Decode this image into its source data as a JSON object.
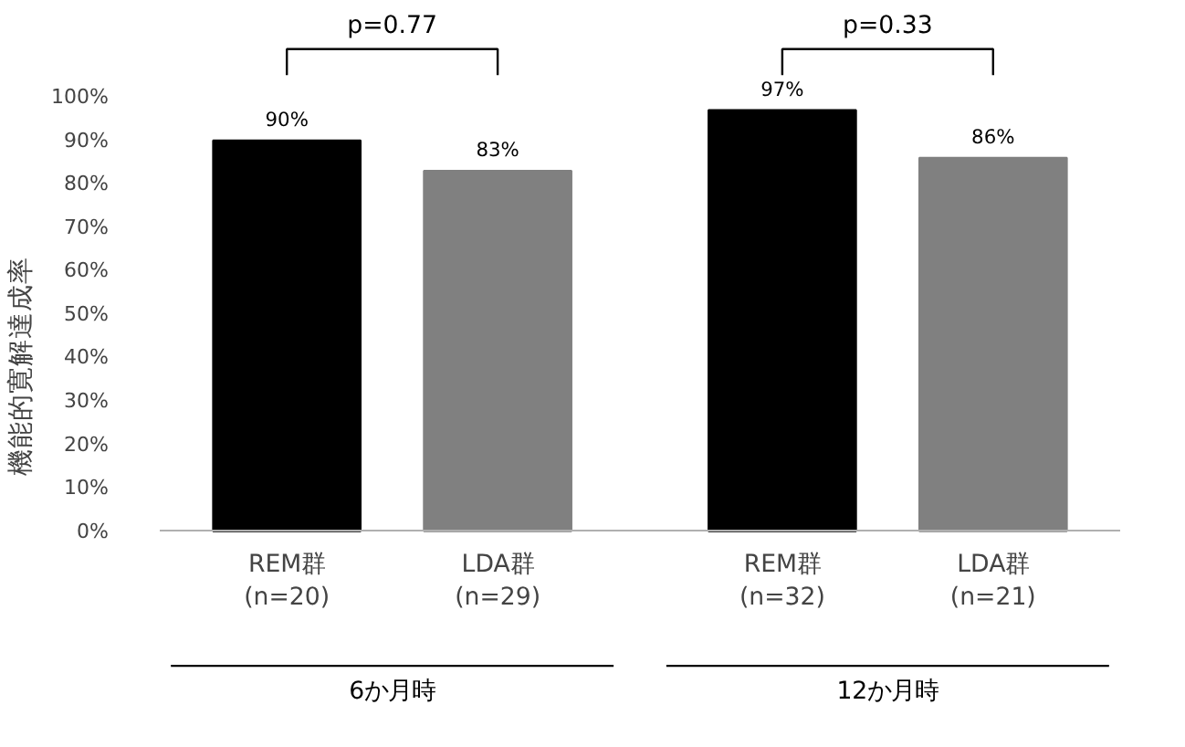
{
  "chart_data": {
    "type": "bar",
    "ylabel": "機能的寛解達成率",
    "categories": [
      "REM群\n(n=20)",
      "LDA群\n(n=29)",
      "REM群\n(n=32)",
      "LDA群\n(n=21)"
    ],
    "values": [
      90,
      83,
      97,
      86
    ],
    "colors": [
      "#000000",
      "#808080",
      "#000000",
      "#808080"
    ],
    "value_labels": [
      "90%",
      "83%",
      "97%",
      "86%"
    ],
    "ylim": [
      0,
      100
    ],
    "yticks": [
      {
        "value": 0,
        "label": "0%"
      },
      {
        "value": 10,
        "label": "10%"
      },
      {
        "value": 20,
        "label": "20%"
      },
      {
        "value": 30,
        "label": "30%"
      },
      {
        "value": 40,
        "label": "40%"
      },
      {
        "value": 50,
        "label": "50%"
      },
      {
        "value": 60,
        "label": "60%"
      },
      {
        "value": 70,
        "label": "70%"
      },
      {
        "value": 80,
        "label": "80%"
      },
      {
        "value": 90,
        "label": "90%"
      },
      {
        "value": 100,
        "label": "100%"
      }
    ],
    "annotations": [
      "p=0.77",
      "p=0.33",
      "6か月時",
      "12か月時"
    ],
    "grid": false
  }
}
